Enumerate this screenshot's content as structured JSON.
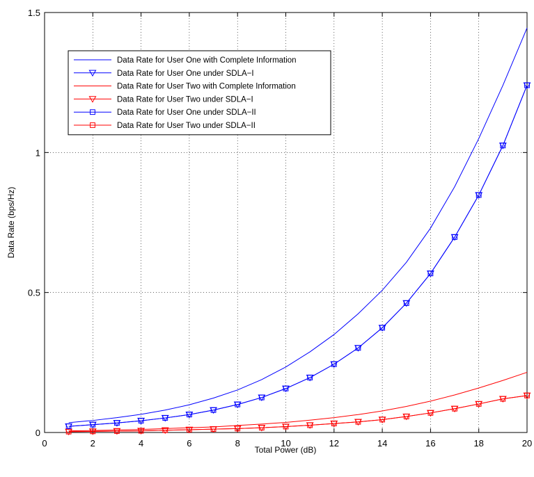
{
  "chart_data": {
    "type": "line",
    "title": "",
    "xlabel": "Total Power (dB)",
    "ylabel": "Data Rate (bps/Hz)",
    "xlim": [
      0,
      20
    ],
    "ylim": [
      0,
      1.5
    ],
    "xticks": [
      0,
      2,
      4,
      6,
      8,
      10,
      12,
      14,
      16,
      18,
      20
    ],
    "yticks": [
      0,
      0.5,
      1,
      1.5
    ],
    "xtick_labels": [
      "0",
      "2",
      "4",
      "6",
      "8",
      "10",
      "12",
      "14",
      "16",
      "18",
      "20"
    ],
    "ytick_labels": [
      "0",
      "0.5",
      "1",
      "1.5"
    ],
    "grid": true,
    "legend_position": "top-left",
    "x": [
      1,
      2,
      3,
      4,
      5,
      6,
      7,
      8,
      9,
      10,
      11,
      12,
      13,
      14,
      15,
      16,
      17,
      18,
      19,
      20
    ],
    "series": [
      {
        "name": "Data Rate for User One with Complete Information",
        "color": "#0000ff",
        "marker": "none",
        "values": [
          0.035,
          0.043,
          0.053,
          0.065,
          0.08,
          0.099,
          0.123,
          0.152,
          0.189,
          0.234,
          0.288,
          0.35,
          0.424,
          0.508,
          0.608,
          0.73,
          0.878,
          1.05,
          1.24,
          1.445
        ]
      },
      {
        "name": "Data Rate for User One under SDLA−I",
        "color": "#0000ff",
        "marker": "triangle-down",
        "values": [
          0.022,
          0.028,
          0.034,
          0.042,
          0.052,
          0.064,
          0.08,
          0.1,
          0.125,
          0.157,
          0.196,
          0.244,
          0.302,
          0.374,
          0.462,
          0.568,
          0.698,
          0.848,
          1.025,
          1.24
        ]
      },
      {
        "name": "Data Rate for User Two with Complete Information",
        "color": "#ff0000",
        "marker": "none",
        "values": [
          0.006,
          0.007,
          0.009,
          0.011,
          0.014,
          0.017,
          0.02,
          0.025,
          0.03,
          0.036,
          0.044,
          0.053,
          0.064,
          0.077,
          0.093,
          0.112,
          0.134,
          0.159,
          0.186,
          0.215
        ]
      },
      {
        "name": "Data Rate for User Two under SDLA−I",
        "color": "#ff0000",
        "marker": "triangle-down",
        "values": [
          0.003,
          0.004,
          0.005,
          0.006,
          0.008,
          0.01,
          0.012,
          0.014,
          0.017,
          0.021,
          0.026,
          0.032,
          0.038,
          0.046,
          0.057,
          0.07,
          0.085,
          0.102,
          0.12,
          0.132
        ]
      },
      {
        "name": "Data Rate for User One under SDLA−II",
        "color": "#0000ff",
        "marker": "square",
        "values": [
          0.022,
          0.028,
          0.034,
          0.042,
          0.052,
          0.064,
          0.08,
          0.1,
          0.125,
          0.157,
          0.196,
          0.244,
          0.302,
          0.374,
          0.462,
          0.568,
          0.698,
          0.848,
          1.025,
          1.24
        ]
      },
      {
        "name": "Data Rate for User Two under SDLA−II",
        "color": "#ff0000",
        "marker": "square",
        "values": [
          0.003,
          0.004,
          0.005,
          0.006,
          0.008,
          0.01,
          0.012,
          0.014,
          0.017,
          0.021,
          0.026,
          0.032,
          0.038,
          0.046,
          0.057,
          0.07,
          0.085,
          0.102,
          0.12,
          0.132
        ]
      }
    ]
  }
}
